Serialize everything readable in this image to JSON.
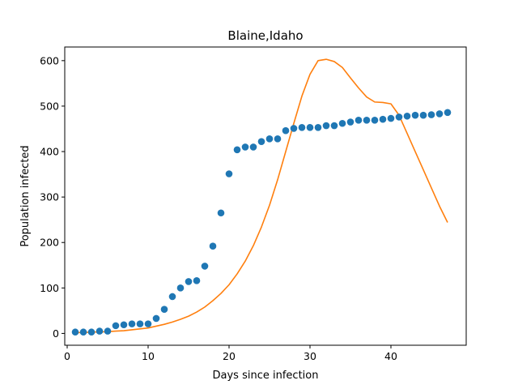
{
  "chart_data": {
    "type": "scatter",
    "title": "Blaine,Idaho",
    "xlabel": "Days since infection",
    "ylabel": "Population infected",
    "xlim": [
      -0.3,
      49.3
    ],
    "ylim": [
      -26,
      630
    ],
    "xticks": [
      0,
      10,
      20,
      30,
      40
    ],
    "yticks": [
      0,
      100,
      200,
      300,
      400,
      500,
      600
    ],
    "grid": false,
    "series": [
      {
        "kind": "scatter",
        "color": "#1f77b4",
        "x": [
          1,
          2,
          3,
          4,
          5,
          6,
          7,
          8,
          9,
          10,
          11,
          12,
          13,
          14,
          15,
          16,
          17,
          18,
          19,
          20,
          21,
          22,
          23,
          24,
          25,
          26,
          27,
          28,
          29,
          30,
          31,
          32,
          33,
          34,
          35,
          36,
          37,
          38,
          39,
          40,
          41,
          42,
          43,
          44,
          45,
          46,
          47
        ],
        "y": [
          3,
          3,
          3,
          5,
          5,
          17,
          19,
          21,
          21,
          21,
          33,
          53,
          81,
          100,
          114,
          116,
          148,
          192,
          265,
          351,
          404,
          410,
          410,
          422,
          428,
          428,
          446,
          451,
          453,
          453,
          453,
          457,
          457,
          462,
          465,
          469,
          469,
          469,
          471,
          473,
          476,
          478,
          480,
          480,
          481,
          483,
          486
        ]
      },
      {
        "kind": "line",
        "color": "#ff7f0e",
        "x": [
          1,
          2,
          3,
          4,
          5,
          6,
          7,
          8,
          9,
          10,
          11,
          12,
          13,
          14,
          15,
          16,
          17,
          18,
          19,
          20,
          21,
          22,
          23,
          24,
          25,
          26,
          27,
          28,
          29,
          30,
          31,
          32,
          33,
          34,
          35,
          36,
          37,
          38,
          39,
          40,
          41,
          42,
          43,
          44,
          45,
          46,
          47
        ],
        "y": [
          2,
          2,
          3,
          3,
          4,
          5,
          6,
          8,
          10,
          12,
          16,
          20,
          25,
          31,
          38,
          47,
          58,
          72,
          88,
          107,
          131,
          159,
          193,
          234,
          282,
          338,
          400,
          462,
          522,
          570,
          600,
          603,
          598,
          585,
          562,
          540,
          520,
          509,
          508,
          505,
          480,
          440,
          400,
          360,
          320,
          280,
          244
        ]
      }
    ]
  }
}
